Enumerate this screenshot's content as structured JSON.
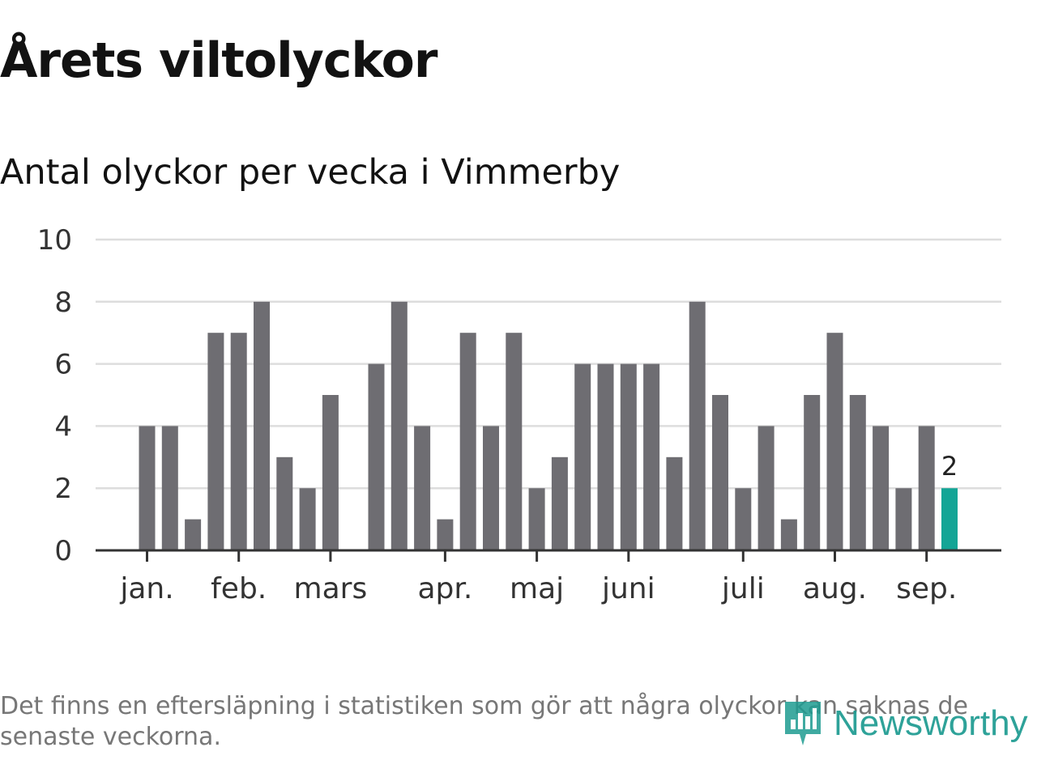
{
  "header": {
    "title": "Årets viltolyckor",
    "subtitle": "Antal olyckor per vecka i Vimmerby"
  },
  "chart_data": {
    "type": "bar",
    "title": "Årets viltolyckor",
    "subtitle": "Antal olyckor per vecka i Vimmerby",
    "ylim": [
      0,
      10
    ],
    "yticks": [
      0,
      2,
      4,
      6,
      8,
      10
    ],
    "grid": true,
    "values": [
      4,
      4,
      1,
      7,
      7,
      8,
      3,
      2,
      5,
      0,
      6,
      8,
      4,
      1,
      7,
      4,
      7,
      2,
      3,
      6,
      6,
      6,
      6,
      3,
      8,
      5,
      2,
      4,
      1,
      5,
      7,
      5,
      4,
      2,
      4,
      2
    ],
    "highlight_index": 35,
    "highlight_label": "2",
    "month_labels": [
      {
        "label": "jan.",
        "week_index": 0
      },
      {
        "label": "feb.",
        "week_index": 4
      },
      {
        "label": "mars",
        "week_index": 8
      },
      {
        "label": "apr.",
        "week_index": 13
      },
      {
        "label": "maj",
        "week_index": 17
      },
      {
        "label": "juni",
        "week_index": 21
      },
      {
        "label": "juli",
        "week_index": 26
      },
      {
        "label": "aug.",
        "week_index": 30
      },
      {
        "label": "sep.",
        "week_index": 34
      }
    ],
    "colors": {
      "bar": "#6e6d72",
      "highlight": "#13a596",
      "grid": "#dddddd",
      "axis": "#333333"
    }
  },
  "footer": {
    "note": "Det finns en eftersläpning i statistiken som gör att några olyckor kan saknas de senaste veckorna.",
    "brand": "Newsworthy"
  }
}
